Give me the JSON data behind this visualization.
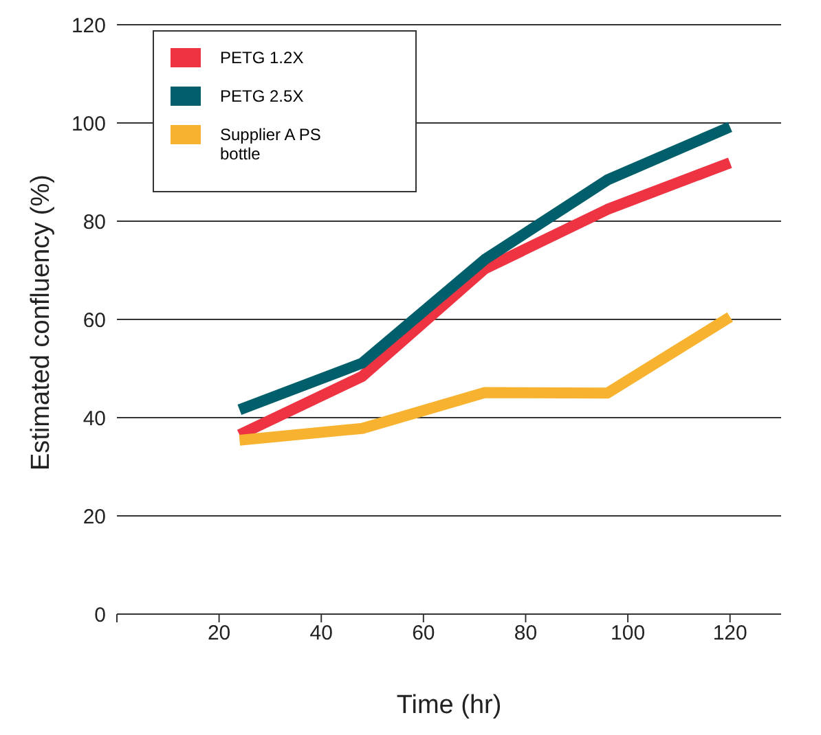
{
  "chart_data": {
    "type": "line",
    "xlabel": "Time (hr)",
    "ylabel": "Estimated confluency (%)",
    "x": [
      24,
      48,
      72,
      96,
      120
    ],
    "series": [
      {
        "name": "PETG 1.2X",
        "color": "#ee3342",
        "values": [
          36.5,
          48.4,
          70.3,
          82.4,
          91.9
        ]
      },
      {
        "name": "PETG 2.5X",
        "color": "#005f6a",
        "values": [
          41.6,
          51.1,
          72.2,
          88.4,
          99.2
        ]
      },
      {
        "name": "Supplier A PS bottle",
        "color": "#f7b330",
        "values": [
          35.4,
          37.8,
          45.1,
          45,
          60.5
        ]
      }
    ],
    "xlim": [
      0,
      130
    ],
    "xticks": [
      {
        "value": 0,
        "label": null
      },
      20,
      40,
      60,
      80,
      100,
      120
    ],
    "ylim": [
      0,
      120
    ],
    "yticks": [
      0,
      20,
      40,
      60,
      80,
      100,
      120
    ],
    "grid": "y",
    "legend": "top left",
    "marker": "none",
    "line_style": "solid"
  }
}
